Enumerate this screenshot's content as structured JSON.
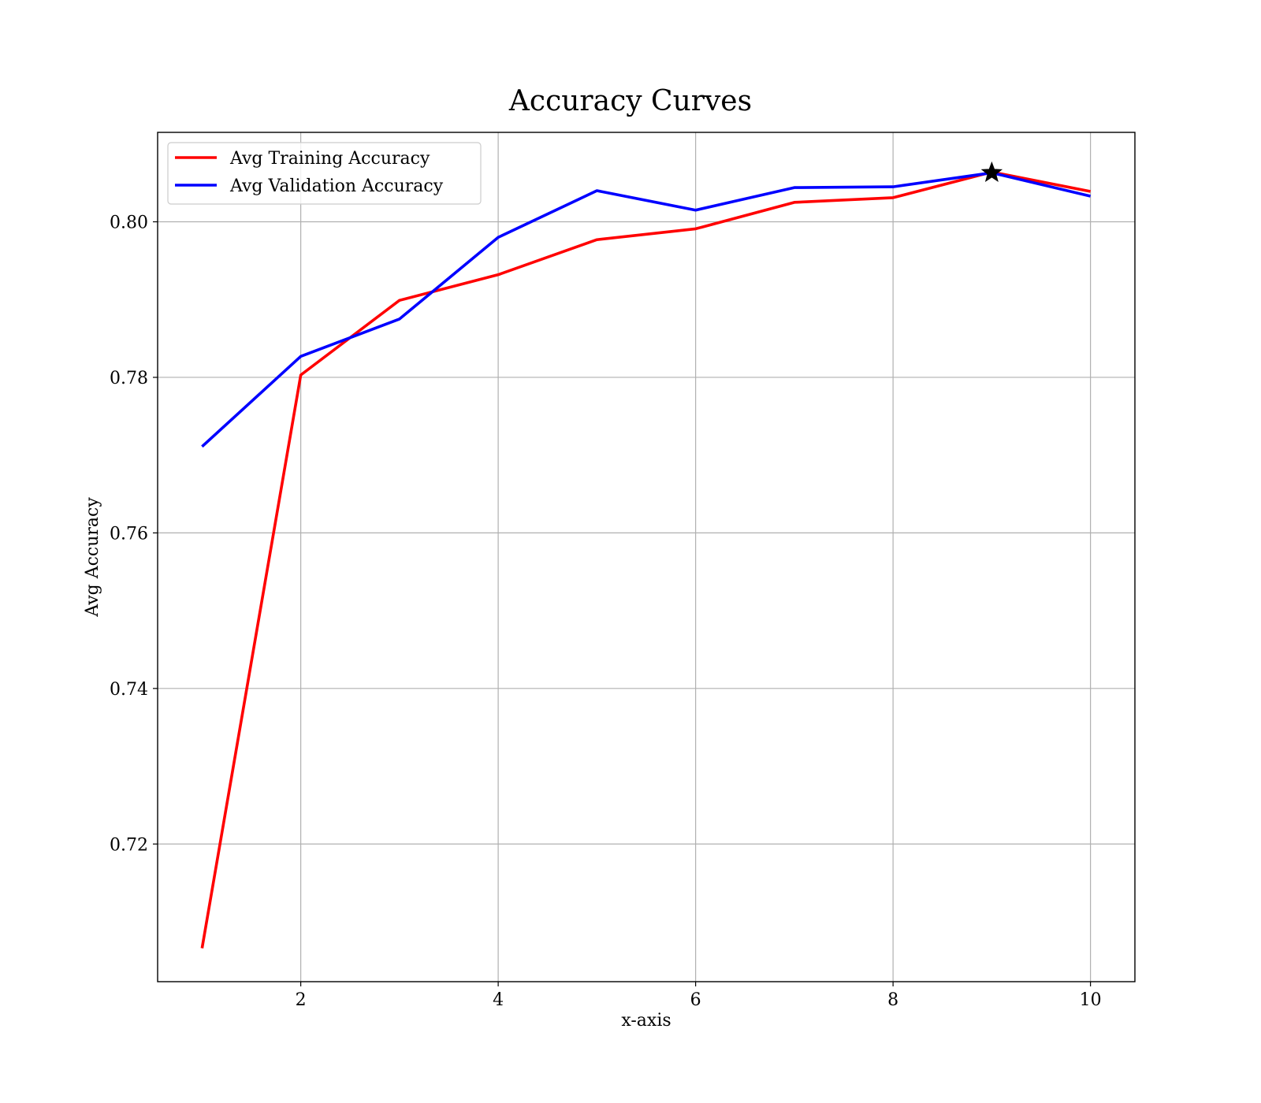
{
  "chart_data": {
    "type": "line",
    "title": "Accuracy Curves",
    "xlabel": "x-axis",
    "ylabel": "Avg Accuracy",
    "xlim": [
      0.55,
      10.45
    ],
    "ylim": [
      0.7023,
      0.8115
    ],
    "xticks": [
      2,
      4,
      6,
      8,
      10
    ],
    "yticks": [
      0.72,
      0.74,
      0.76,
      0.78,
      0.8
    ],
    "x": [
      1,
      2,
      3,
      4,
      5,
      6,
      7,
      8,
      9,
      10
    ],
    "series": [
      {
        "name": "Avg Training Accuracy",
        "color": "#ff0000",
        "values": [
          0.7066,
          0.7803,
          0.7899,
          0.7932,
          0.7977,
          0.7991,
          0.8025,
          0.8031,
          0.8064,
          0.8039
        ]
      },
      {
        "name": "Avg Validation Accuracy",
        "color": "#0000ff",
        "values": [
          0.7711,
          0.7827,
          0.7875,
          0.798,
          0.804,
          0.8015,
          0.8044,
          0.8045,
          0.8063,
          0.8033
        ]
      }
    ],
    "marker": {
      "shape": "star",
      "x": 9,
      "y": 0.8063,
      "color": "#000000"
    },
    "grid": true,
    "legend_position": "top-left"
  }
}
